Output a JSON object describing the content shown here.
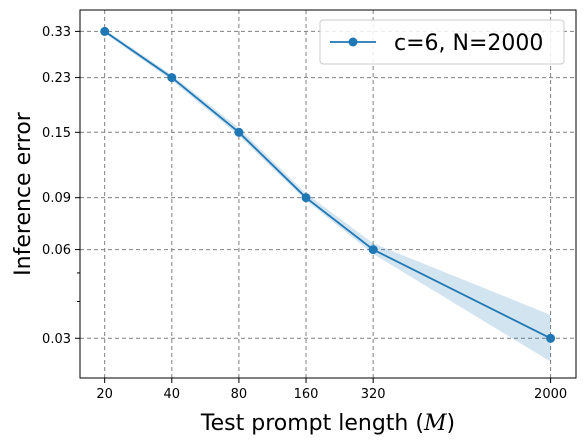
{
  "chart_data": {
    "type": "line",
    "title": "",
    "xlabel_prefix": "Test prompt length (",
    "xlabel_var": "M",
    "xlabel_suffix": ")",
    "ylabel": "Inference error",
    "x_scale": "log",
    "y_scale": "log",
    "xlim": [
      15.5,
      2600
    ],
    "ylim": [
      0.022,
      0.39
    ],
    "x_ticks": [
      20,
      40,
      80,
      160,
      320,
      2000
    ],
    "x_tick_labels": [
      "20",
      "40",
      "80",
      "160",
      "320",
      "2000"
    ],
    "y_ticks": [
      0.03,
      0.06,
      0.09,
      0.15,
      0.23,
      0.33
    ],
    "y_tick_labels": [
      "0.03",
      "0.06",
      "0.09",
      "0.15",
      "0.23",
      "0.33"
    ],
    "y_minor_ticks": [
      0.04,
      0.05
    ],
    "grid": true,
    "legend_position": "top-right",
    "series": [
      {
        "name": "c=6, N=2000",
        "color": "#1f77b4",
        "band_color": "#1f77b4",
        "x": [
          20,
          40,
          80,
          160,
          320,
          2000
        ],
        "y": [
          0.33,
          0.23,
          0.15,
          0.09,
          0.06,
          0.03
        ],
        "y_lower": [
          0.325,
          0.225,
          0.146,
          0.088,
          0.058,
          0.025
        ],
        "y_upper": [
          0.335,
          0.235,
          0.155,
          0.093,
          0.063,
          0.036
        ]
      }
    ]
  }
}
